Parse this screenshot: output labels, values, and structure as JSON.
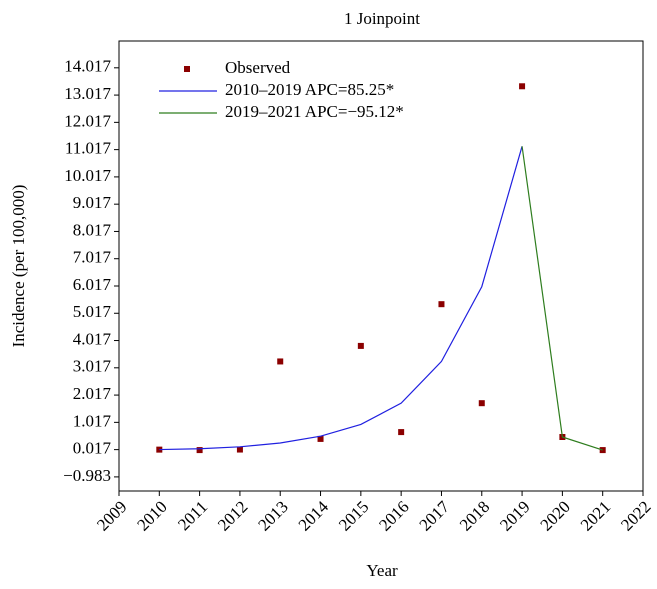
{
  "chart_data": {
    "type": "joinpoint",
    "title": "1 Joinpoint",
    "x_label": "Year",
    "y_label": "Incidence (per 100,000)",
    "xlim": [
      2009,
      2022
    ],
    "xticks": [
      2009,
      2010,
      2011,
      2012,
      2013,
      2014,
      2015,
      2016,
      2017,
      2018,
      2019,
      2020,
      2021,
      2022
    ],
    "ylim": [
      -1.5,
      15
    ],
    "yticks": [
      {
        "value": -0.983,
        "label": "−0.983"
      },
      0.017,
      1.017,
      2.017,
      3.017,
      4.017,
      5.017,
      6.017,
      7.017,
      8.017,
      9.017,
      10.017,
      11.017,
      12.017,
      13.017,
      14.017
    ],
    "legend": "upper left",
    "series": [
      {
        "name": "Observed",
        "type": "scatter",
        "color": "#8b0000",
        "x": [
          2010,
          2011,
          2012,
          2013,
          2014,
          2015,
          2016,
          2017,
          2018,
          2019,
          2020,
          2021
        ],
        "values": [
          0.017,
          0.0,
          0.02,
          3.25,
          0.41,
          3.82,
          0.66,
          5.35,
          1.72,
          13.34,
          0.48,
          0.0
        ]
      },
      {
        "name": "2010–2019 APC=85.25*",
        "type": "line",
        "color": "#2020e0",
        "x": [
          2010,
          2011,
          2012,
          2013,
          2014,
          2015,
          2016,
          2017,
          2018,
          2019
        ],
        "values": [
          0.02,
          0.05,
          0.12,
          0.26,
          0.51,
          0.94,
          1.72,
          3.25,
          5.99,
          11.14
        ]
      },
      {
        "name": "2019–2021 APC=−95.12*",
        "type": "line",
        "color": "#2e7d1e",
        "x": [
          2019,
          2020,
          2021
        ],
        "values": [
          11.14,
          0.48,
          0.0
        ]
      }
    ]
  }
}
